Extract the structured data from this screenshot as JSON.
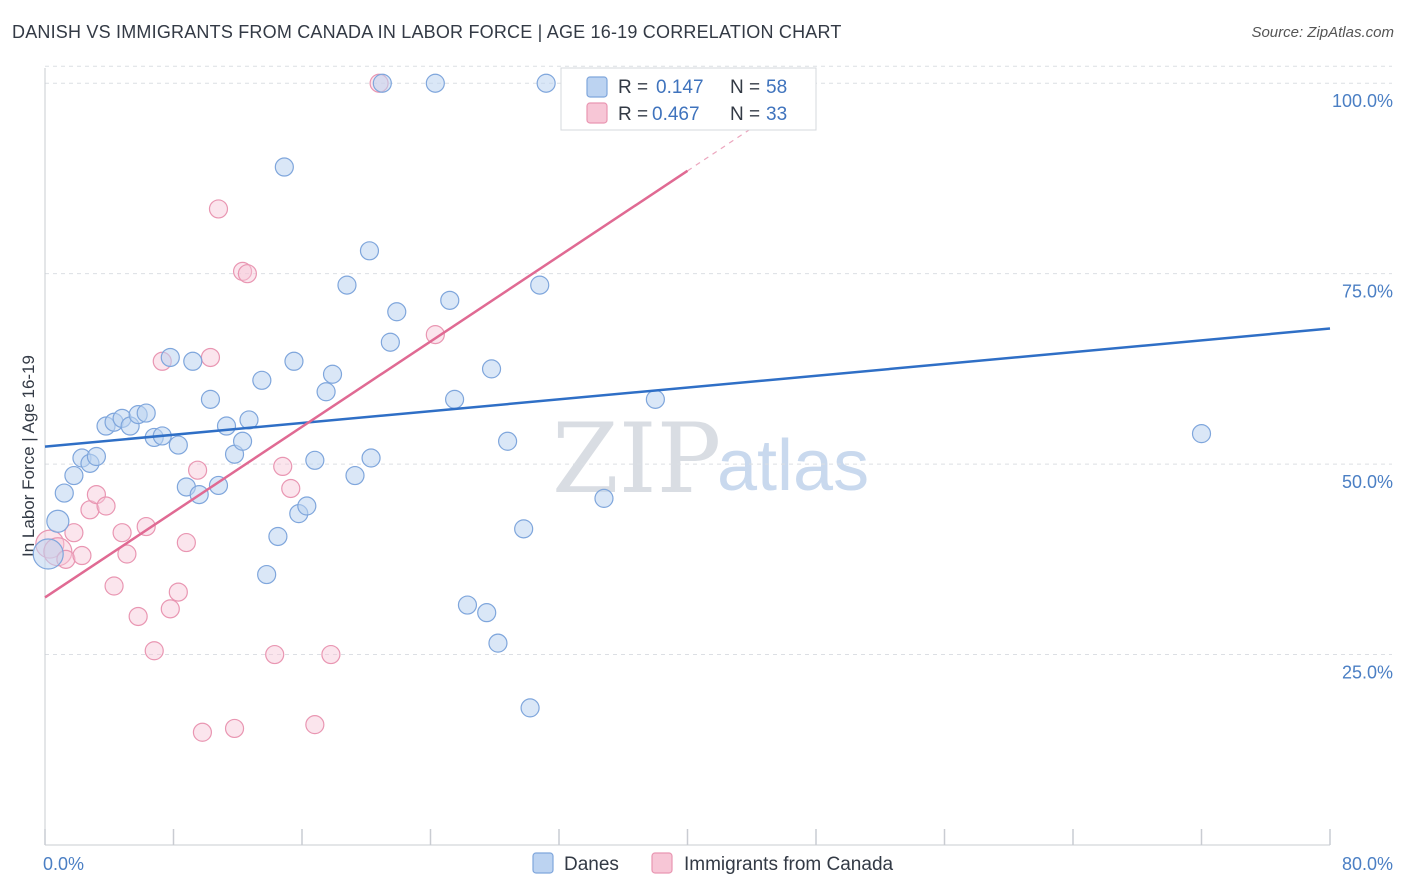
{
  "header": {
    "title": "DANISH VS IMMIGRANTS FROM CANADA IN LABOR FORCE | AGE 16-19 CORRELATION CHART",
    "source": "Source: ZipAtlas.com"
  },
  "watermark": {
    "zip": "ZIP",
    "atlas": "atlas"
  },
  "legend_top": {
    "rows": [
      {
        "r_label": "R =",
        "r_value": "0.147",
        "n_label": "N =",
        "n_value": "58"
      },
      {
        "r_label": "R =",
        "r_value": "0.467",
        "n_label": "N =",
        "n_value": "33"
      }
    ]
  },
  "legend_bottom": [
    {
      "label": "Danes"
    },
    {
      "label": "Immigrants from Canada"
    }
  ],
  "colors": {
    "danes_fill": "#bcd3f1",
    "danes_stroke": "#7fa6dc",
    "danes_line": "#2f6fc6",
    "canada_fill": "#f7c6d6",
    "canada_stroke": "#e996b2",
    "canada_line": "#e06a93",
    "tick": "#4b7fc4",
    "grid": "#dcdfe4"
  },
  "chart_data": {
    "type": "scatter",
    "xlabel": "",
    "ylabel": "In Labor Force | Age 16-19",
    "xlim": [
      0,
      80
    ],
    "ylim": [
      0,
      102
    ],
    "x_ticks": [
      "0.0%",
      "80.0%"
    ],
    "y_ticks": [
      {
        "value": 100,
        "label": "100.0%"
      },
      {
        "value": 75,
        "label": "75.0%"
      },
      {
        "value": 50,
        "label": "50.0%"
      },
      {
        "value": 25,
        "label": "25.0%"
      }
    ],
    "grid": true,
    "series": [
      {
        "name": "Danes",
        "points": [
          [
            0.2,
            38.2
          ],
          [
            0.8,
            42.5
          ],
          [
            1.2,
            46.2
          ],
          [
            1.8,
            48.5
          ],
          [
            2.3,
            50.8
          ],
          [
            2.8,
            50.1
          ],
          [
            3.2,
            51.0
          ],
          [
            3.8,
            55.0
          ],
          [
            4.3,
            55.5
          ],
          [
            4.8,
            56.0
          ],
          [
            5.3,
            55.0
          ],
          [
            5.8,
            56.5
          ],
          [
            6.3,
            56.7
          ],
          [
            6.8,
            53.5
          ],
          [
            7.3,
            53.7
          ],
          [
            7.8,
            64.0
          ],
          [
            8.3,
            52.5
          ],
          [
            8.8,
            47.0
          ],
          [
            9.2,
            63.5
          ],
          [
            9.6,
            46.0
          ],
          [
            10.3,
            58.5
          ],
          [
            10.8,
            47.2
          ],
          [
            11.3,
            55.0
          ],
          [
            11.8,
            51.3
          ],
          [
            12.3,
            53.0
          ],
          [
            12.7,
            55.8
          ],
          [
            13.5,
            61.0
          ],
          [
            13.8,
            35.5
          ],
          [
            14.5,
            40.5
          ],
          [
            14.9,
            89.0
          ],
          [
            15.5,
            63.5
          ],
          [
            15.8,
            43.5
          ],
          [
            16.3,
            44.5
          ],
          [
            16.8,
            50.5
          ],
          [
            17.5,
            59.5
          ],
          [
            17.9,
            61.8
          ],
          [
            18.8,
            73.5
          ],
          [
            19.3,
            48.5
          ],
          [
            20.2,
            78.0
          ],
          [
            20.3,
            50.8
          ],
          [
            21.0,
            100.0
          ],
          [
            21.5,
            66.0
          ],
          [
            21.9,
            70.0
          ],
          [
            24.3,
            100.0
          ],
          [
            25.2,
            71.5
          ],
          [
            25.5,
            58.5
          ],
          [
            26.3,
            31.5
          ],
          [
            27.5,
            30.5
          ],
          [
            27.8,
            62.5
          ],
          [
            28.2,
            26.5
          ],
          [
            28.8,
            53.0
          ],
          [
            29.8,
            41.5
          ],
          [
            30.2,
            18.0
          ],
          [
            30.8,
            73.5
          ],
          [
            31.2,
            100.0
          ],
          [
            34.8,
            45.5
          ],
          [
            38.0,
            58.5
          ],
          [
            72.0,
            54.0
          ]
        ]
      },
      {
        "name": "Immigrants from Canada",
        "points": [
          [
            0.3,
            39.5
          ],
          [
            0.8,
            38.5
          ],
          [
            1.3,
            37.5
          ],
          [
            1.8,
            41.0
          ],
          [
            2.3,
            38.0
          ],
          [
            2.8,
            44.0
          ],
          [
            3.2,
            46.0
          ],
          [
            3.8,
            44.5
          ],
          [
            4.3,
            34.0
          ],
          [
            4.8,
            41.0
          ],
          [
            5.1,
            38.2
          ],
          [
            5.8,
            30.0
          ],
          [
            6.3,
            41.8
          ],
          [
            6.8,
            25.5
          ],
          [
            7.3,
            63.5
          ],
          [
            7.8,
            31.0
          ],
          [
            8.3,
            33.2
          ],
          [
            8.8,
            39.7
          ],
          [
            9.5,
            49.2
          ],
          [
            9.8,
            14.8
          ],
          [
            10.3,
            64.0
          ],
          [
            10.8,
            83.5
          ],
          [
            11.8,
            15.3
          ],
          [
            12.3,
            75.3
          ],
          [
            12.6,
            75.0
          ],
          [
            14.3,
            25.0
          ],
          [
            14.8,
            49.7
          ],
          [
            15.3,
            46.8
          ],
          [
            16.8,
            15.8
          ],
          [
            17.8,
            25.0
          ],
          [
            20.8,
            100.0
          ],
          [
            24.3,
            67.0
          ],
          [
            33.8,
            100.0
          ]
        ]
      }
    ],
    "trend_lines": [
      {
        "series": "Danes",
        "x": [
          0,
          80
        ],
        "y": [
          52.3,
          67.8
        ],
        "style": "solid"
      },
      {
        "series": "Immigrants from Canada",
        "x": [
          0,
          40
        ],
        "y": [
          32.5,
          88.5
        ],
        "style": "solid",
        "extension_to_x": 44.5,
        "extension_style": "dashed"
      }
    ]
  }
}
